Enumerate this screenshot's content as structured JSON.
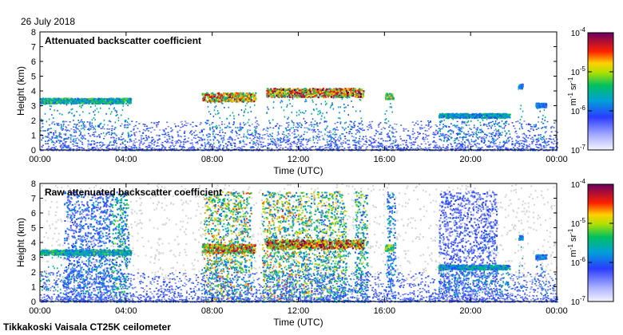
{
  "date_label": "26 July 2018",
  "footer_label": "Tikkakoski Vaisala CT25K ceilometer",
  "chart_data": [
    {
      "type": "heatmap",
      "title": "Attenuated backscatter coefficient",
      "xlabel": "Time (UTC)",
      "ylabel": "Height (km)",
      "xlim": [
        "00:00",
        "24:00"
      ],
      "ylim": [
        0,
        8
      ],
      "x_ticks": [
        "00:00",
        "04:00",
        "08:00",
        "12:00",
        "16:00",
        "20:00",
        "00:00"
      ],
      "y_ticks": [
        "0",
        "1",
        "2",
        "3",
        "4",
        "5",
        "6",
        "7",
        "8"
      ],
      "colorbar": {
        "label_base": "m",
        "label_exp1": "-1",
        "label_mid": " sr",
        "label_exp2": "-1",
        "scale": "log",
        "range": [
          1e-07,
          0.0001
        ],
        "ticks": [
          {
            "base": "10",
            "exp": "-4"
          },
          {
            "base": "10",
            "exp": "-5"
          },
          {
            "base": "10",
            "exp": "-6"
          },
          {
            "base": "10",
            "exp": "-7"
          }
        ]
      },
      "features": [
        {
          "name": "boundary-layer",
          "t0": 0.0,
          "t1": 24.0,
          "h0": 0.0,
          "h1": 2.0,
          "level": 0.25
        },
        {
          "name": "cloud-layer",
          "t0": 0.0,
          "t1": 4.2,
          "h_base": 3.3,
          "thickness": 0.35,
          "level": 0.55
        },
        {
          "name": "cloud-layer",
          "t0": 7.5,
          "t1": 10.0,
          "h_base": 3.5,
          "thickness": 0.6,
          "level": 0.85
        },
        {
          "name": "cloud-layer",
          "t0": 10.5,
          "t1": 15.0,
          "h_base": 3.8,
          "thickness": 0.6,
          "level": 0.9
        },
        {
          "name": "cloud-layer",
          "t0": 16.0,
          "t1": 16.4,
          "h_base": 3.6,
          "thickness": 0.4,
          "level": 0.7
        },
        {
          "name": "cloud-layer",
          "t0": 18.5,
          "t1": 21.8,
          "h_base": 2.3,
          "thickness": 0.3,
          "level": 0.5
        },
        {
          "name": "cloud-layer",
          "t0": 22.2,
          "t1": 22.4,
          "h_base": 4.3,
          "thickness": 0.3,
          "level": 0.4
        },
        {
          "name": "cloud-layer",
          "t0": 23.0,
          "t1": 23.5,
          "h_base": 3.0,
          "thickness": 0.3,
          "level": 0.4
        }
      ]
    },
    {
      "type": "heatmap",
      "title": "Raw attenuated backscatter coefficient",
      "xlabel": "Time (UTC)",
      "ylabel": "Height (km)",
      "xlim": [
        "00:00",
        "24:00"
      ],
      "ylim": [
        0,
        8
      ],
      "x_ticks": [
        "00:00",
        "04:00",
        "08:00",
        "12:00",
        "16:00",
        "20:00",
        "00:00"
      ],
      "y_ticks": [
        "0",
        "1",
        "2",
        "3",
        "4",
        "5",
        "6",
        "7",
        "8"
      ],
      "colorbar": {
        "label_base": "m",
        "label_exp1": "-1",
        "label_mid": " sr",
        "label_exp2": "-1",
        "scale": "log",
        "range": [
          1e-07,
          0.0001
        ],
        "ticks": [
          {
            "base": "10",
            "exp": "-4"
          },
          {
            "base": "10",
            "exp": "-5"
          },
          {
            "base": "10",
            "exp": "-6"
          },
          {
            "base": "10",
            "exp": "-7"
          }
        ]
      },
      "noise_background": true,
      "noisy_periods": [
        {
          "t0": 1.1,
          "t1": 3.3,
          "level": 0.3
        },
        {
          "t0": 3.3,
          "t1": 4.1,
          "level": 0.45
        },
        {
          "t0": 7.6,
          "t1": 9.8,
          "level": 0.6
        },
        {
          "t0": 10.3,
          "t1": 12.6,
          "level": 0.6
        },
        {
          "t0": 12.7,
          "t1": 14.2,
          "level": 0.55
        },
        {
          "t0": 14.6,
          "t1": 15.2,
          "level": 0.5
        },
        {
          "t0": 16.1,
          "t1": 16.5,
          "level": 0.35
        },
        {
          "t0": 18.5,
          "t1": 21.2,
          "level": 0.25
        }
      ],
      "features": [
        {
          "name": "boundary-layer",
          "t0": 0.0,
          "t1": 24.0,
          "h0": 0.0,
          "h1": 2.0,
          "level": 0.25
        },
        {
          "name": "cloud-layer",
          "t0": 0.0,
          "t1": 4.2,
          "h_base": 3.3,
          "thickness": 0.35,
          "level": 0.55
        },
        {
          "name": "cloud-layer",
          "t0": 7.5,
          "t1": 10.0,
          "h_base": 3.5,
          "thickness": 0.6,
          "level": 0.85
        },
        {
          "name": "cloud-layer",
          "t0": 10.5,
          "t1": 15.0,
          "h_base": 3.8,
          "thickness": 0.6,
          "level": 0.9
        },
        {
          "name": "cloud-layer",
          "t0": 16.0,
          "t1": 16.4,
          "h_base": 3.6,
          "thickness": 0.4,
          "level": 0.7
        },
        {
          "name": "cloud-layer",
          "t0": 18.5,
          "t1": 21.8,
          "h_base": 2.3,
          "thickness": 0.3,
          "level": 0.5
        },
        {
          "name": "cloud-layer",
          "t0": 22.2,
          "t1": 22.4,
          "h_base": 4.3,
          "thickness": 0.3,
          "level": 0.4
        },
        {
          "name": "cloud-layer",
          "t0": 23.0,
          "t1": 23.5,
          "h_base": 3.0,
          "thickness": 0.3,
          "level": 0.4
        }
      ]
    }
  ]
}
